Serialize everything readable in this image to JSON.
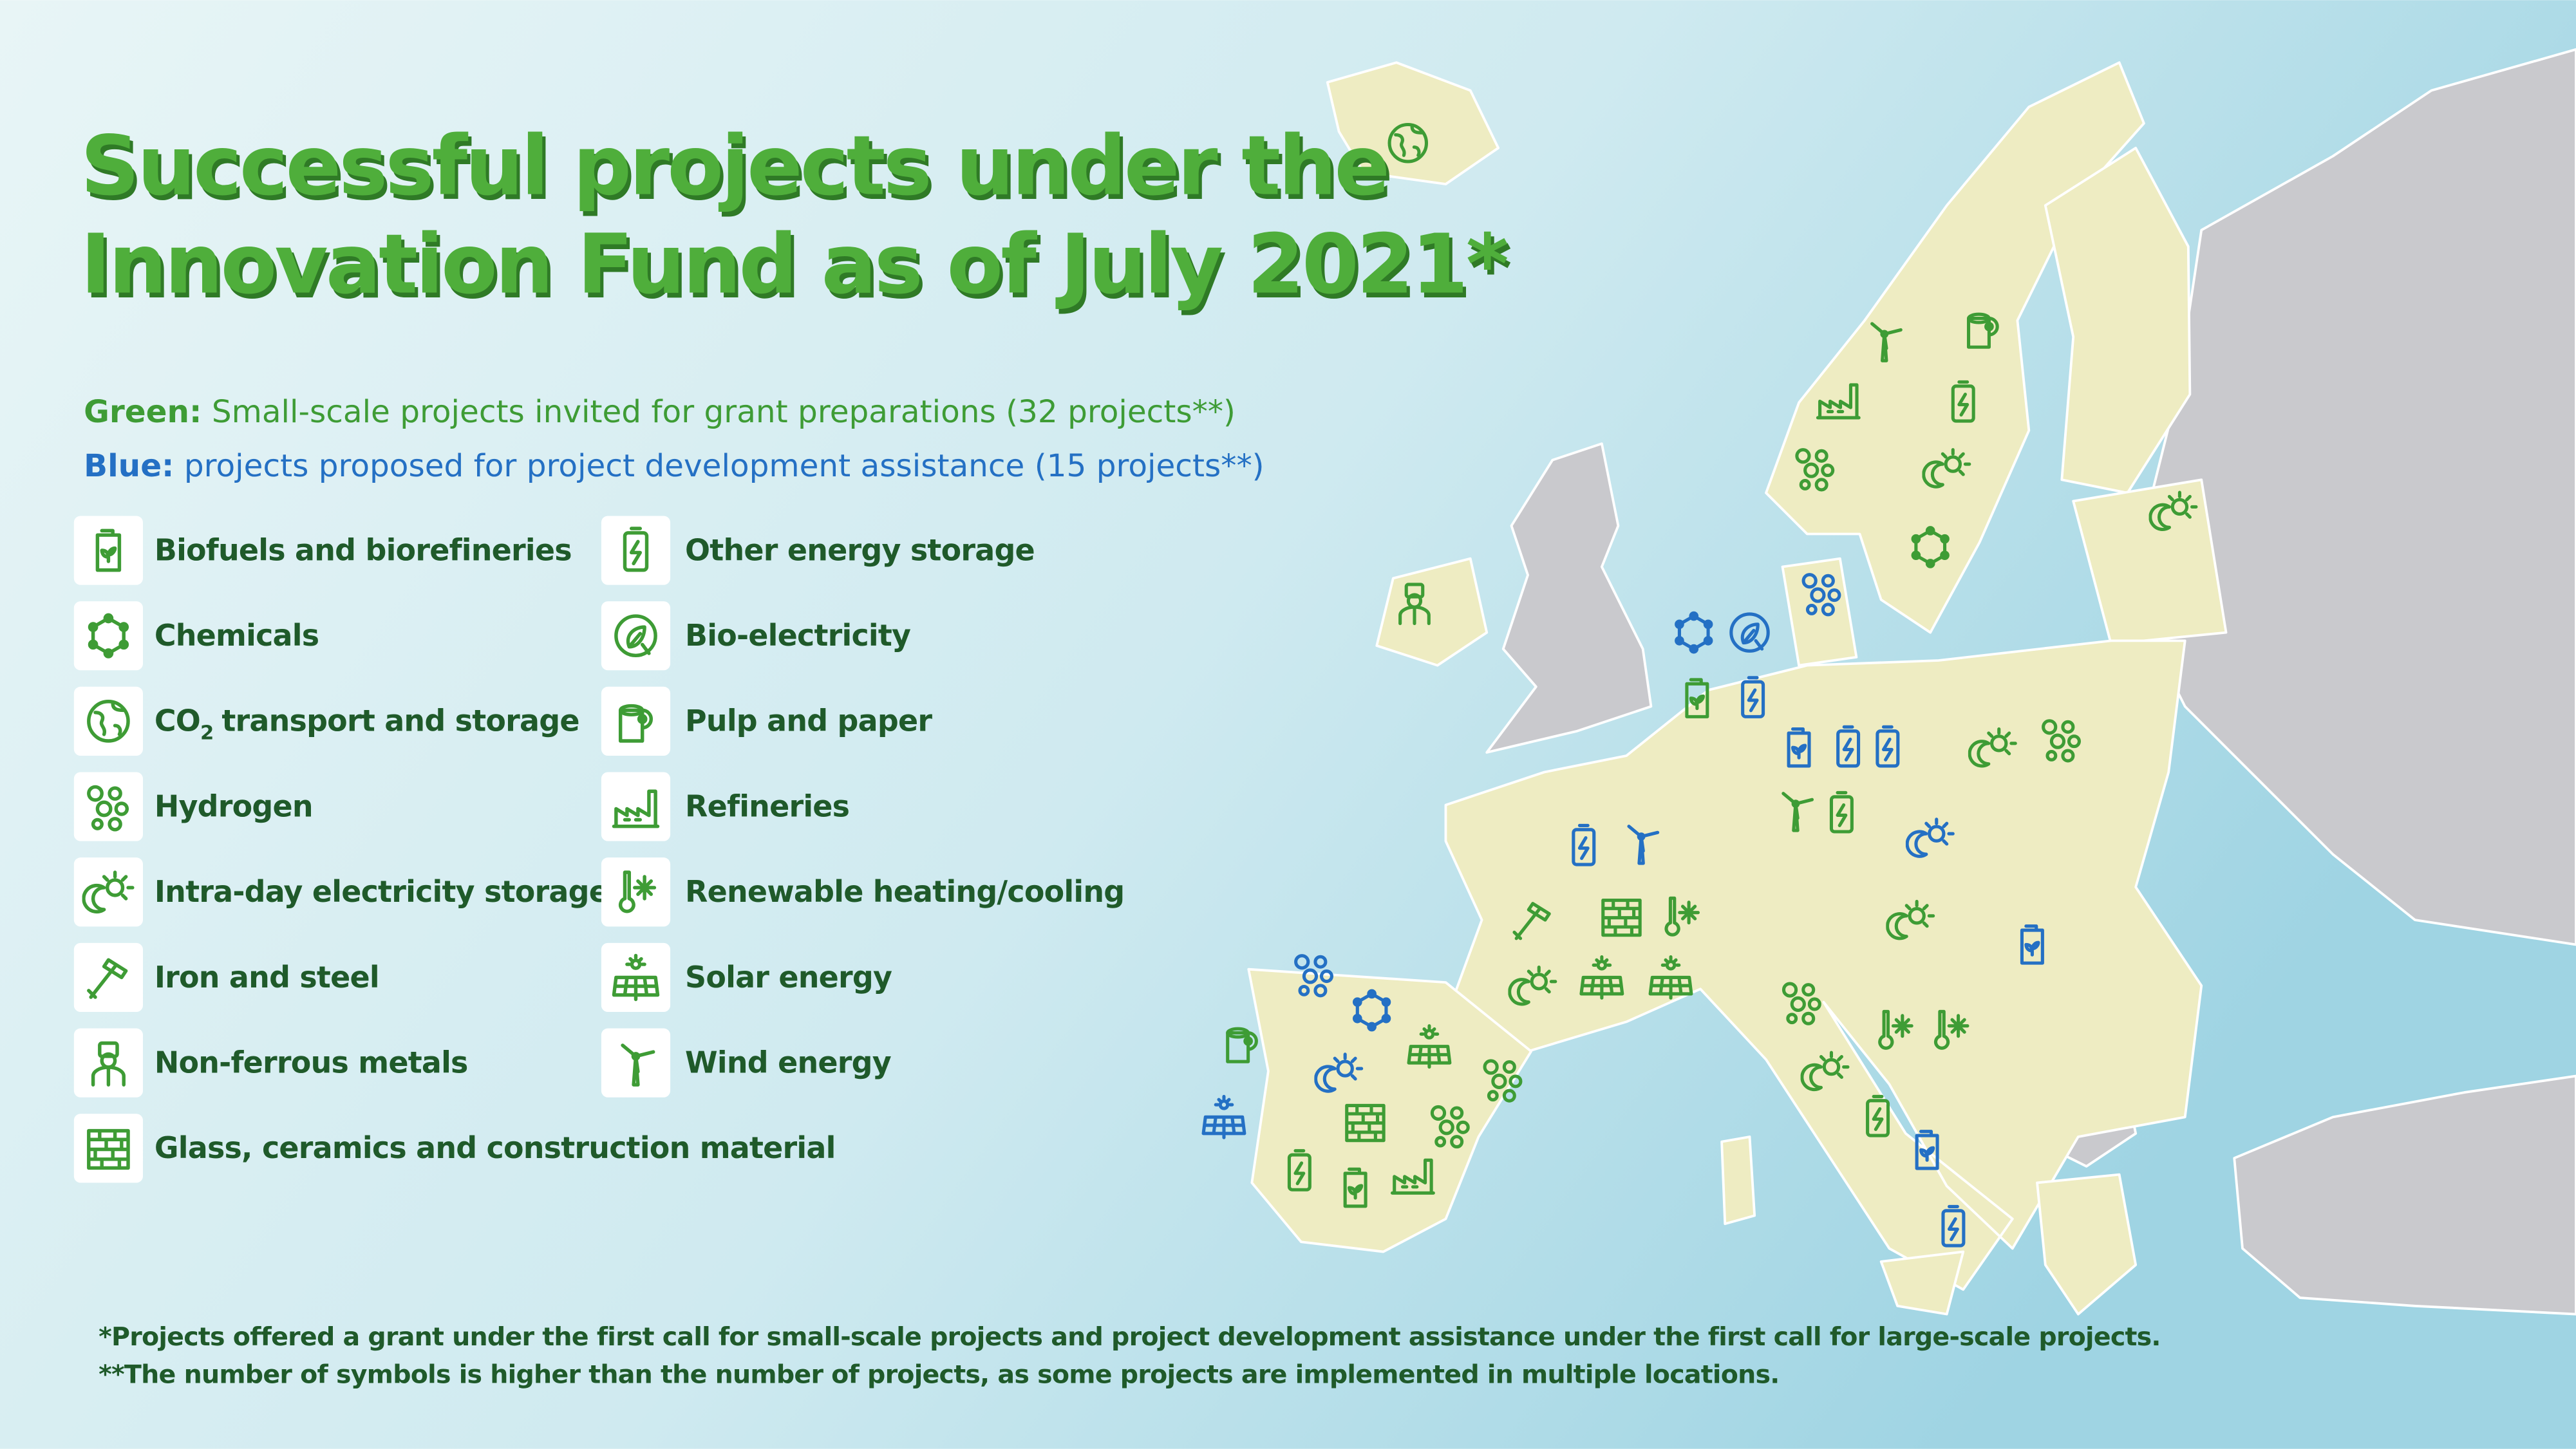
{
  "title": [
    "Successful projects under the",
    "Innovation Fund as of July 2021*"
  ],
  "key": {
    "green": {
      "label": "Green:",
      "text": "Small-scale projects invited for grant preparations (32 projects**)"
    },
    "blue": {
      "label": "Blue:",
      "text": "projects proposed for project development assistance (15 projects**)"
    }
  },
  "legend": [
    "Biofuels and biorefineries",
    "Chemicals",
    {
      "text": "CO",
      "subscript": "2",
      "rest": "transport and storage"
    },
    "Hydrogen",
    "Intra-day electricity storage",
    "Iron and steel",
    "Non-ferrous metals",
    "Glass, ceramics and construction material",
    "Other energy storage",
    "Bio-electricity",
    "Pulp and paper",
    "Refineries",
    "Renewable heating/cooling",
    "Solar energy",
    "Wind energy"
  ],
  "footnotes": [
    "*Projects offered a grant under the first call for small-scale projects and project development assistance under the first call for large-scale projects.",
    "**The number of symbols is higher than the number of projects, as some projects are implemented in multiple locations."
  ]
}
